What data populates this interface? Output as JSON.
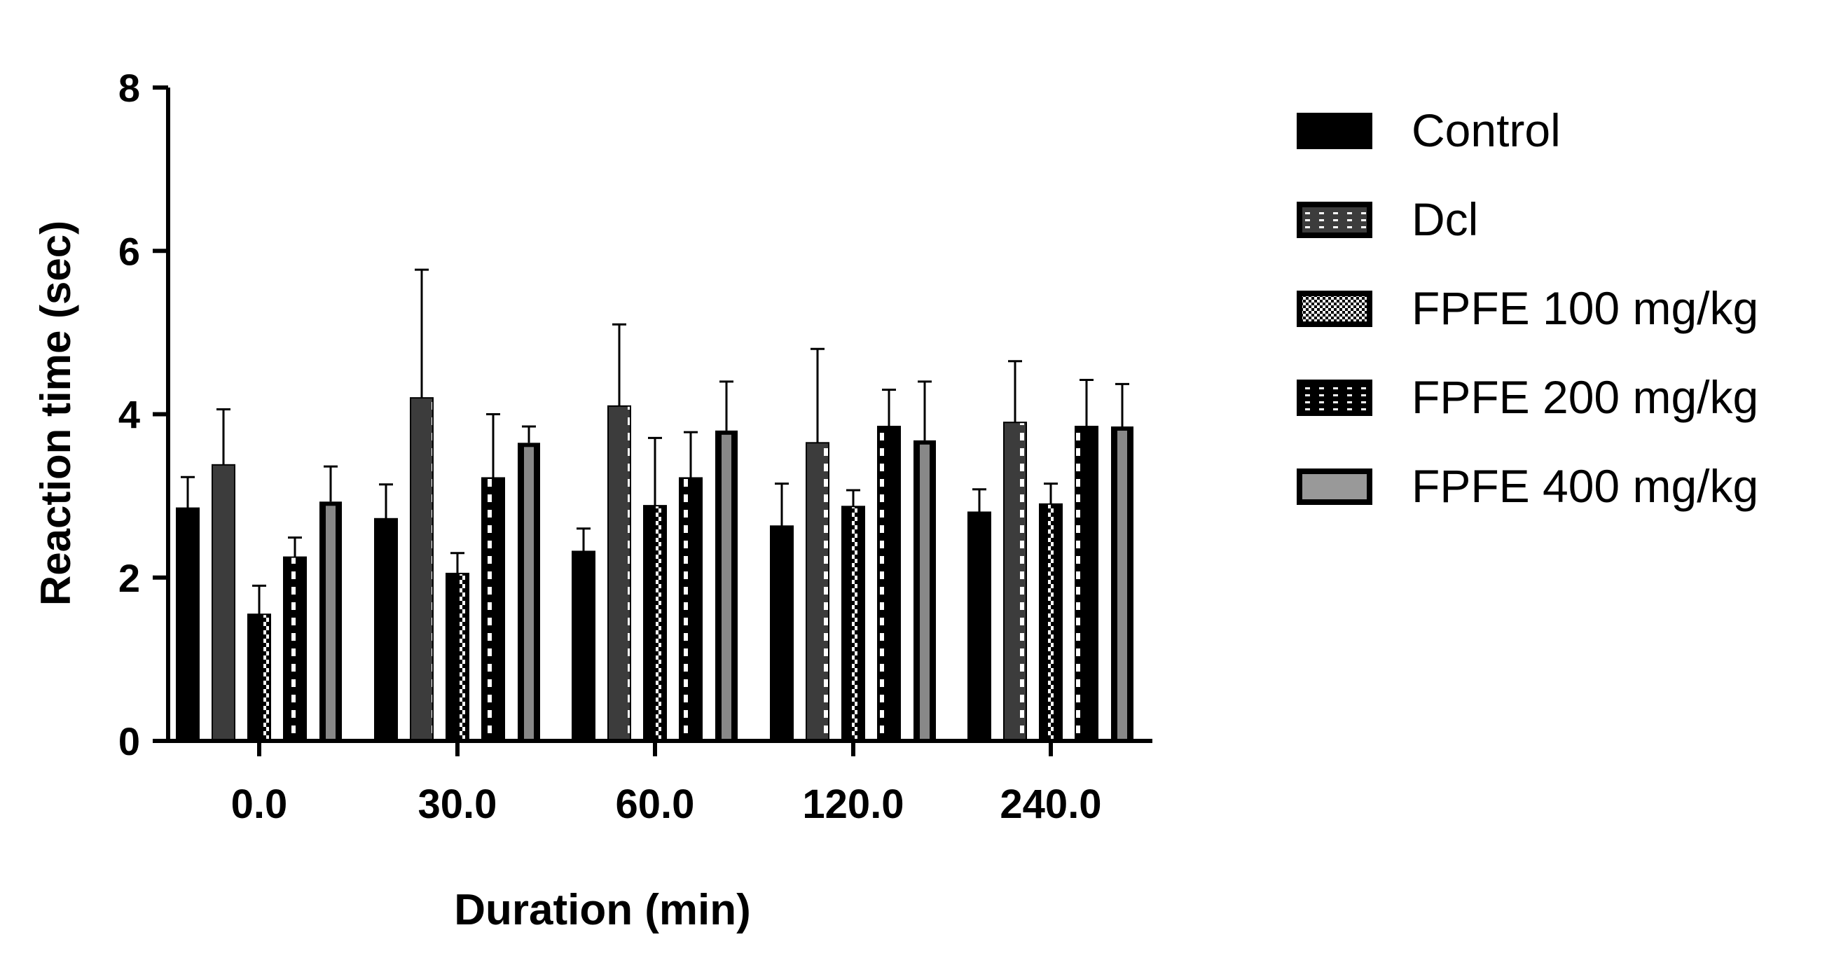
{
  "chart_data": {
    "type": "bar",
    "xlabel": "Duration (min)",
    "ylabel": "Reaction time (sec)",
    "categories": [
      "0.0",
      "30.0",
      "60.0",
      "120.0",
      "240.0"
    ],
    "ylim": [
      0,
      8
    ],
    "yticks": [
      0,
      2,
      4,
      6,
      8
    ],
    "legend_position": "right",
    "series": [
      {
        "name": "Control",
        "pattern": "solid-black",
        "values": [
          2.85,
          2.72,
          2.32,
          2.63,
          2.8
        ],
        "errors": [
          0.38,
          0.42,
          0.28,
          0.52,
          0.28
        ]
      },
      {
        "name": "Dcl",
        "pattern": "gray-checker",
        "values": [
          3.38,
          4.2,
          4.1,
          3.65,
          3.9
        ],
        "errors": [
          0.68,
          1.57,
          1.0,
          1.15,
          0.75
        ]
      },
      {
        "name": "FPFE 100 mg/kg",
        "pattern": "black-checker",
        "values": [
          1.55,
          2.05,
          2.88,
          2.87,
          2.9
        ],
        "errors": [
          0.35,
          0.25,
          0.83,
          0.2,
          0.25
        ]
      },
      {
        "name": "FPFE 200 mg/kg",
        "pattern": "black-dashed",
        "values": [
          2.25,
          3.22,
          3.22,
          3.85,
          3.85
        ],
        "errors": [
          0.24,
          0.78,
          0.56,
          0.45,
          0.57
        ]
      },
      {
        "name": "FPFE 400 mg/kg",
        "pattern": "black-outline-gray",
        "values": [
          2.93,
          3.65,
          3.8,
          3.68,
          3.85
        ],
        "errors": [
          0.43,
          0.2,
          0.6,
          0.72,
          0.52
        ]
      }
    ],
    "colors": {
      "axis": "#000000",
      "black": "#000000",
      "dark_gray": "#3c3c3c",
      "gray": "#999999",
      "white": "#ffffff"
    }
  }
}
